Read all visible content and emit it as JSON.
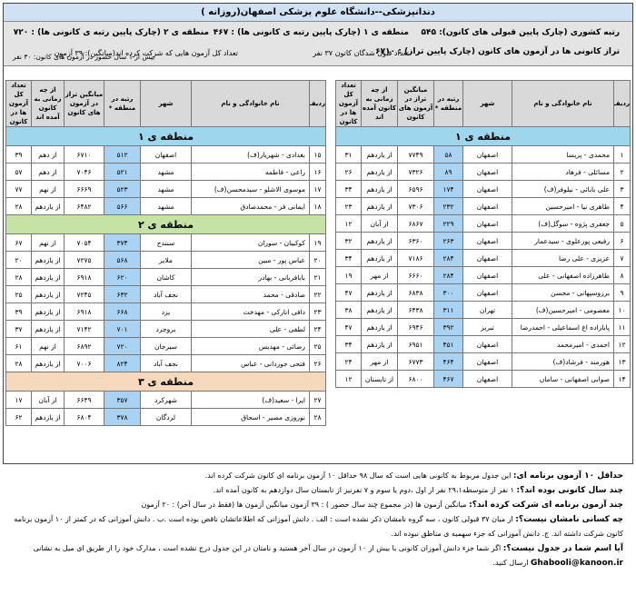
{
  "title": "دندانپزشکی--دانشگاه علوم پزشکی اصفهان(روزانه )",
  "stats": {
    "national_rank": "رتبه کشوری (چارک پایین قبولی های کانون): ۵۴۵",
    "region1": "منطقه ی ۱ (چارک پایین رتبه ی کانونی ها) : ۴۶۷",
    "region2": "منطقه ی ۲ (چارک پایین رتبه ی کانونی ها) : ۷۲۰",
    "kanoon_level": "تراز کانونی ها در آزمون های کانون (چارک پایین تراز) : ۶۷۱۰",
    "accepted_count": "تعداد قبول شدگان کانون ۳۷ نفر",
    "avg_exams": "تعداد کل آزمون هایی که شرکت کرده اند(میانگین): ۳۹ آزمون",
    "over_one_year": "بیش از ۱ سال حضور در آزمون های کانون: ۳۰ نفر"
  },
  "headers": {
    "row": "ردیف",
    "name": "نام خانوادگی و نام",
    "city": "شهر",
    "rank": "رتبه در منطقه *",
    "level": "میانگین تراز در آزمون های کانون",
    "since": "از چه زمانی به کانون آمده اند",
    "count": "تعداد کل آزمون ها در کانون"
  },
  "region_labels": {
    "r1": "منطقه ی ۱",
    "r2": "منطقه ی ۲",
    "r3": "منطقه ی ۳"
  },
  "right_table": [
    {
      "n": "۱",
      "name": "محمدی - پریسا",
      "city": "اصفهان",
      "rank": "۵۸",
      "level": "۷۷۴۹",
      "since": "از یازدهم",
      "count": "۳۱"
    },
    {
      "n": "۲",
      "name": "مسائلی - فرهاد",
      "city": "اصفهان",
      "rank": "۸۹",
      "level": "۷۳۲۶",
      "since": "از یازدهم",
      "count": "۲۶"
    },
    {
      "n": "۳",
      "name": "علی بابائی - نیلوفر(ف)",
      "city": "اصفهان",
      "rank": "۱۷۴",
      "level": "۶۵۹۶",
      "since": "از یازدهم",
      "count": "۳۴"
    },
    {
      "n": "۴",
      "name": "طاهری نیا - امیرحسین",
      "city": "اصفهان",
      "rank": "۲۳۲",
      "level": "۷۳۰۶",
      "since": "از یازدهم",
      "count": "۲۳"
    },
    {
      "n": "۵",
      "name": "جعفری پژوه - سوگل(ف)",
      "city": "اصفهان",
      "rank": "۲۲۹",
      "level": "۶۸۶۷",
      "since": "از آبان",
      "count": "۱۲"
    },
    {
      "n": "۶",
      "name": "رفیعی پورعلوی - سیدعمار",
      "city": "اصفهان",
      "rank": "۲۶۳",
      "level": "۶۳۶۰",
      "since": "از یازدهم",
      "count": "۳۲"
    },
    {
      "n": "۷",
      "name": "عزیزی - علی رضا",
      "city": "اصفهان",
      "rank": "۲۸۴",
      "level": "۷۱۸۶",
      "since": "از یازدهم",
      "count": "۳۴"
    },
    {
      "n": "۸",
      "name": "طاهرزاده اصفهانی - علی",
      "city": "اصفهان",
      "rank": "۲۸۴",
      "level": "۶۶۶۰",
      "since": "از مهر",
      "count": "۱۹"
    },
    {
      "n": "۹",
      "name": "برزوسپهانی - محسن",
      "city": "اصفهان",
      "rank": "۳۰۰",
      "level": "۶۸۳۸",
      "since": "از یازدهم",
      "count": "۴۷"
    },
    {
      "n": "۱۰",
      "name": "معصومی - امیرحسین(ف)",
      "city": "تهران",
      "rank": "۳۱۱",
      "level": "۶۴۳۸",
      "since": "از یازدهم",
      "count": "۳۸"
    },
    {
      "n": "۱۱",
      "name": "پابازاده اغ اسماعیلی - احمدرضا",
      "city": "تبریز",
      "rank": "۳۹۲",
      "level": "۶۹۴۶",
      "since": "از یازدهم",
      "count": "۴۷"
    },
    {
      "n": "۱۲",
      "name": "احمدی - امیرمحمد",
      "city": "اصفهان",
      "rank": "۴۵۱",
      "level": "۶۹۵۱",
      "since": "از یازدهم",
      "count": "۳۴"
    },
    {
      "n": "۱۳",
      "name": "هورمند - فرشاد(ف)",
      "city": "اصفهان",
      "rank": "۴۶۴",
      "level": "۶۷۷۳",
      "since": "از مهر",
      "count": "۲۴"
    },
    {
      "n": "۱۴",
      "name": "صوابی اصفهانی - ساماں",
      "city": "اصفهان",
      "rank": "۴۶۷",
      "level": "۶۸۰۰",
      "since": "از تابستان",
      "count": "۱۲"
    }
  ],
  "left_r1": [
    {
      "n": "۱۵",
      "name": "بغدادی - شهریار(ف)",
      "city": "اصفهان",
      "rank": "۵۱۲",
      "level": "۶۷۱۰",
      "since": "از دهم",
      "count": "۳۹"
    },
    {
      "n": "۱۶",
      "name": "راعی - فاطمه",
      "city": "مشهد",
      "rank": "۵۲۱",
      "level": "۷۰۴۶",
      "since": "از دهم",
      "count": "۵۷"
    },
    {
      "n": "۱۷",
      "name": "موسوی الاشلو - سیدمحسن(ف)",
      "city": "مشهد",
      "rank": "۵۲۳",
      "level": "۶۶۶۹",
      "since": "از نهم",
      "count": "۷۷"
    },
    {
      "n": "۱۸",
      "name": "ایمانی فر - محمدصادق",
      "city": "مشهد",
      "rank": "۵۶۶",
      "level": "۶۴۸۲",
      "since": "از یازدهم",
      "count": "۲۸"
    }
  ],
  "left_r2": [
    {
      "n": "۱۹",
      "name": "کوکبیان - سوران",
      "city": "سنندج",
      "rank": "۳۷۴",
      "level": "۷۰۵۴",
      "since": "از نهم",
      "count": "۶۷"
    },
    {
      "n": "۲۰",
      "name": "عباس پور - مبین",
      "city": "ملایر",
      "rank": "۵۶۸",
      "level": "۷۲۷۵",
      "since": "از یازدهم",
      "count": "۲۰"
    },
    {
      "n": "۲۱",
      "name": "بابافربانی - بهادر",
      "city": "کاشان",
      "rank": "۶۲۰",
      "level": "۶۹۱۸",
      "since": "از یازدهم",
      "count": "۲۸"
    },
    {
      "n": "۲۲",
      "name": "صادقی - محمد",
      "city": "نجف آباد",
      "rank": "۶۳۲",
      "level": "۷۲۴۵",
      "since": "از یازدهم",
      "count": "۲۵"
    },
    {
      "n": "۲۳",
      "name": "دافی اناركی - مهدخت",
      "city": "یزد",
      "rank": "۶۶۸",
      "level": "۶۹۱۸",
      "since": "از یازدهم",
      "count": "۳۹"
    },
    {
      "n": "۲۴",
      "name": "لطفی - علی",
      "city": "بروجرد",
      "rank": "۷۰۱",
      "level": "۷۱۴۲",
      "since": "از یازدهم",
      "count": "۳۷"
    },
    {
      "n": "۲۵",
      "name": "رضائی - مهدیس",
      "city": "سیرجان",
      "rank": "۷۲۰",
      "level": "۶۸۹۲",
      "since": "از نهم",
      "count": "۶۱"
    },
    {
      "n": "۲۶",
      "name": "فتحی جوزدانی - عباس",
      "city": "نجف آباد",
      "rank": "۸۲۴",
      "level": "۷۰۰۶",
      "since": "از یازدهم",
      "count": "۲۸"
    }
  ],
  "left_r3": [
    {
      "n": "۲۷",
      "name": "ایرا - سعید(ف)",
      "city": "شهرکرد",
      "rank": "۳۵۷",
      "level": "۶۶۴۹",
      "since": "از آبان",
      "count": "۱۷"
    },
    {
      "n": "۲۸",
      "name": "نوروزی مصیر - اسحاق",
      "city": "لردگان",
      "rank": "۳۷۸",
      "level": "۶۸۰۴",
      "since": "از یازدهم",
      "count": "۶۲"
    }
  ],
  "notes": {
    "n1_label": "حداقل ۱۰ آزمون برنامه ای:",
    "n1_text": "این جدول مربوط به کانونی هایی است که سال ۹۸ حداقل ۱۰ آزمون برنامه ای کانون شرکت کرده اند.",
    "n2_label": "چند سال کانونی بوده اند؟:",
    "n2_text": "۱ نفر از متوسطه۲۹،۱ نفر از اول ،دوم یا سوم و ۷ نفرنیز از تابستان سال دوازدهم به کانون آمده اند.",
    "n3_label": "چند آزمون برنامه ای شرکت کرده اند؟:",
    "n3_text": "میانگین آزمون ها (در مجموع چند سال حضور ) : ۳۹ آزمون     میانگین آزمون ها (فقط در سال آخر) : ۲۰ آزمون",
    "n4_label": "چه کسانی نامشان نیست؟:",
    "n4_text": "از میان ۳۷ قبولی کانون ، سه گروه نامشان ذکر نشده است : الف . دانش آموزانی که اطلاعاتشان ناقص بوده است .ب . دانش آموزانی که در کمتر از ۱۰ آزمون برنامه ای",
    "n4_cont": "کانون شرکت داشته اند. ج. دانش آموزانی که جزء سهمیه ی مناطق نبوده اند.",
    "n5_label": "آیا اسم شما در جدول نیست؟:",
    "n5_text": "اگر شما جزء دانش آموزان کانونی با بیش از ۱۰ آزمون در سال آخر هستید و نامتان در این جدول درج نشده است ، مدارک خود را از طریق ای میل به نشانی",
    "n5_email": "Ghabooli@kanoon.ir",
    "n5_cont": "ارسال کنید."
  }
}
